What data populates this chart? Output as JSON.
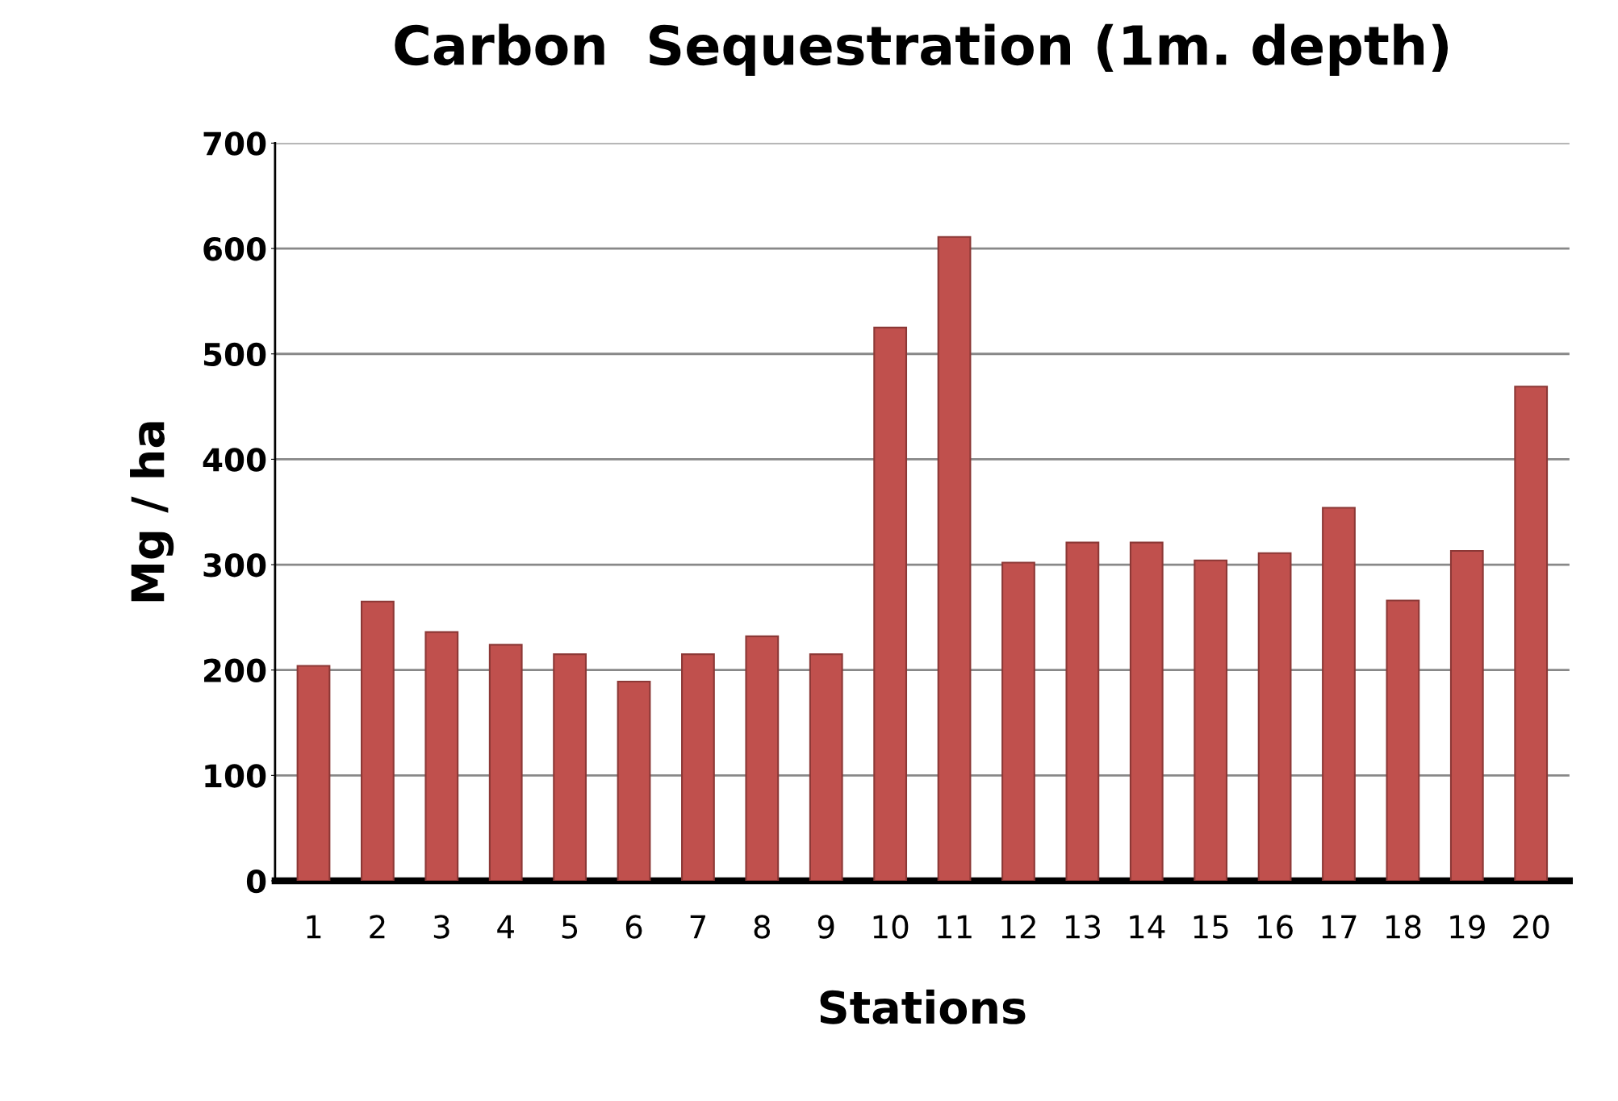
{
  "chart_data": {
    "type": "bar",
    "title": "Carbon  Sequestration (1m. depth)",
    "xlabel": "Stations",
    "ylabel": "Mg / ha",
    "categories": [
      "1",
      "2",
      "3",
      "4",
      "5",
      "6",
      "7",
      "8",
      "9",
      "10",
      "11",
      "12",
      "13",
      "14",
      "15",
      "16",
      "17",
      "18",
      "19",
      "20"
    ],
    "values": [
      204,
      265,
      236,
      224,
      215,
      189,
      215,
      232,
      215,
      525,
      611,
      302,
      321,
      321,
      304,
      311,
      354,
      266,
      313,
      469
    ],
    "color": "#c0504d",
    "ylim": [
      0,
      700
    ],
    "yticks": [
      0,
      100,
      200,
      300,
      400,
      500,
      600,
      700
    ],
    "grid": "y",
    "legend": false
  }
}
